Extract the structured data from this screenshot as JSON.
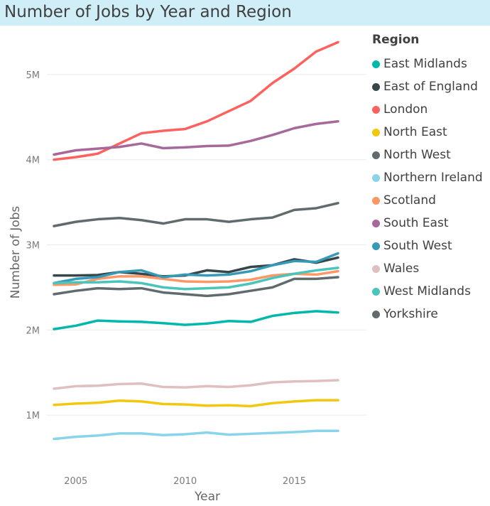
{
  "chart_data": {
    "type": "line",
    "title": "Number of Jobs by Year and Region",
    "xlabel": "Year",
    "ylabel": "Number of Jobs",
    "xlim": [
      2004,
      2017
    ],
    "ylim": [
      600000,
      5500000
    ],
    "xticks": [
      2005,
      2010,
      2015
    ],
    "xtick_labels": [
      "2005",
      "2010",
      "2015"
    ],
    "yticks": [
      1000000,
      2000000,
      3000000,
      4000000,
      5000000
    ],
    "ytick_labels": [
      "1M",
      "2M",
      "3M",
      "4M",
      "5M"
    ],
    "grid": true,
    "legend_title": "Region",
    "legend_position": "right",
    "x": [
      2004,
      2005,
      2006,
      2007,
      2008,
      2009,
      2010,
      2011,
      2012,
      2013,
      2014,
      2015,
      2016,
      2017
    ],
    "series": [
      {
        "name": "East Midlands",
        "color": "#01b8aa",
        "values": [
          2010000,
          2050000,
          2110000,
          2100000,
          2095000,
          2080000,
          2060000,
          2075000,
          2105000,
          2095000,
          2165000,
          2200000,
          2220000,
          2205000
        ]
      },
      {
        "name": "East of England",
        "color": "#374649",
        "values": [
          2640000,
          2640000,
          2645000,
          2680000,
          2660000,
          2630000,
          2640000,
          2700000,
          2680000,
          2740000,
          2760000,
          2830000,
          2790000,
          2850000
        ]
      },
      {
        "name": "London",
        "color": "#fd625e",
        "values": [
          4000000,
          4030000,
          4070000,
          4190000,
          4310000,
          4340000,
          4360000,
          4450000,
          4570000,
          4690000,
          4900000,
          5070000,
          5270000,
          5380000
        ]
      },
      {
        "name": "North East",
        "color": "#f2c80f",
        "values": [
          1120000,
          1135000,
          1145000,
          1170000,
          1160000,
          1130000,
          1125000,
          1110000,
          1115000,
          1105000,
          1140000,
          1160000,
          1175000,
          1175000
        ]
      },
      {
        "name": "North West",
        "color": "#5f6b6d",
        "values": [
          3220000,
          3270000,
          3300000,
          3315000,
          3290000,
          3250000,
          3300000,
          3300000,
          3270000,
          3300000,
          3320000,
          3410000,
          3430000,
          3490000
        ]
      },
      {
        "name": "Northern Ireland",
        "color": "#8ad4eb",
        "values": [
          720000,
          745000,
          760000,
          785000,
          785000,
          765000,
          775000,
          795000,
          770000,
          780000,
          790000,
          800000,
          815000,
          815000
        ]
      },
      {
        "name": "Scotland",
        "color": "#fe9666",
        "values": [
          2530000,
          2535000,
          2600000,
          2630000,
          2630000,
          2600000,
          2570000,
          2565000,
          2570000,
          2590000,
          2640000,
          2660000,
          2650000,
          2690000
        ]
      },
      {
        "name": "South East",
        "color": "#a66999",
        "values": [
          4060000,
          4110000,
          4130000,
          4150000,
          4190000,
          4135000,
          4145000,
          4160000,
          4165000,
          4220000,
          4290000,
          4370000,
          4420000,
          4450000
        ]
      },
      {
        "name": "South West",
        "color": "#3599b8",
        "values": [
          2550000,
          2600000,
          2620000,
          2680000,
          2700000,
          2620000,
          2650000,
          2640000,
          2650000,
          2690000,
          2760000,
          2810000,
          2800000,
          2900000
        ]
      },
      {
        "name": "Wales",
        "color": "#dfbfbf",
        "values": [
          1310000,
          1340000,
          1345000,
          1365000,
          1370000,
          1330000,
          1325000,
          1340000,
          1330000,
          1350000,
          1385000,
          1395000,
          1400000,
          1410000
        ]
      },
      {
        "name": "West Midlands",
        "color": "#4ac5bb",
        "values": [
          2550000,
          2560000,
          2560000,
          2570000,
          2550000,
          2500000,
          2480000,
          2490000,
          2500000,
          2545000,
          2610000,
          2660000,
          2700000,
          2730000
        ]
      },
      {
        "name": "Yorkshire",
        "color": "#5f6b6d",
        "values": [
          2420000,
          2460000,
          2490000,
          2480000,
          2490000,
          2440000,
          2420000,
          2400000,
          2420000,
          2460000,
          2500000,
          2600000,
          2600000,
          2620000
        ]
      }
    ]
  }
}
